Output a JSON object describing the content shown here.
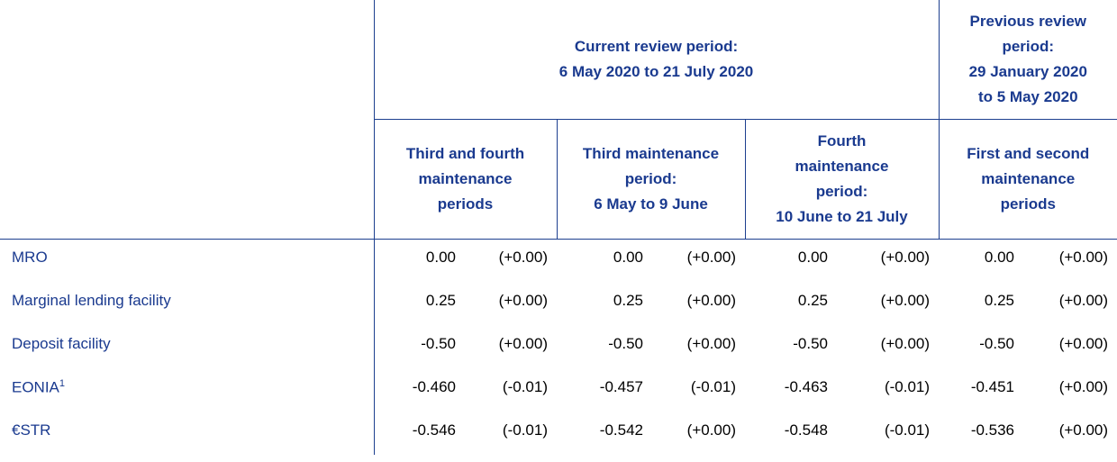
{
  "header": {
    "current_period": [
      "Current review period:",
      "6 May 2020 to 21 July 2020"
    ],
    "previous_period": [
      "Previous review",
      "period:",
      "29 January 2020",
      "to 5 May 2020"
    ],
    "columns": [
      [
        "Third and fourth",
        "maintenance",
        "periods"
      ],
      [
        "Third maintenance",
        "period:",
        "6 May to 9 June"
      ],
      [
        "Fourth",
        "maintenance",
        "period:",
        "10 June to 21 July"
      ],
      [
        "First and second",
        "maintenance",
        "periods"
      ]
    ]
  },
  "table": {
    "rows": [
      {
        "label": "MRO",
        "cells": [
          "0.00",
          "(+0.00)",
          "0.00",
          "(+0.00)",
          "0.00",
          "(+0.00)",
          "0.00",
          "(+0.00)"
        ]
      },
      {
        "label": "Marginal lending facility",
        "cells": [
          "0.25",
          "(+0.00)",
          "0.25",
          "(+0.00)",
          "0.25",
          "(+0.00)",
          "0.25",
          "(+0.00)"
        ]
      },
      {
        "label": "Deposit facility",
        "cells": [
          "-0.50",
          "(+0.00)",
          "-0.50",
          "(+0.00)",
          "-0.50",
          "(+0.00)",
          "-0.50",
          "(+0.00)"
        ]
      },
      {
        "label": "EONIA",
        "footnote": "1",
        "cells": [
          "-0.460",
          "(-0.01)",
          "-0.457",
          "(-0.01)",
          "-0.463",
          "(-0.01)",
          "-0.451",
          "(+0.00)"
        ]
      },
      {
        "label": "€STR",
        "cells": [
          "-0.546",
          "(-0.01)",
          "-0.542",
          "(+0.00)",
          "-0.548",
          "(-0.01)",
          "-0.536",
          "(+0.00)"
        ]
      }
    ]
  }
}
